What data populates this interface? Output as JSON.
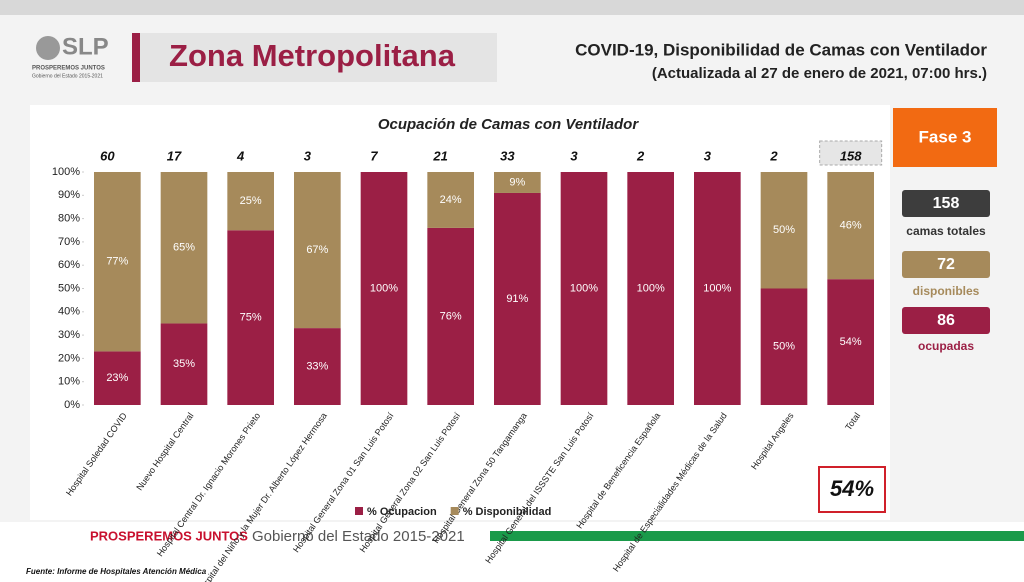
{
  "logo": {
    "mark": "SLP",
    "line1": "PROSPEREMOS JUNTOS",
    "line2": "Gobierno del Estado 2015-2021"
  },
  "header": {
    "zone": "Zona Metropolitana",
    "title": "COVID-19, Disponibilidad de Camas con Ventilador",
    "subtitle": "(Actualizada al 27 de enero de 2021, 07:00 hrs.)"
  },
  "side_panel": {
    "phase": "Fase 3",
    "total": 158,
    "total_label": "camas totales",
    "available": 72,
    "available_label": "disponibles",
    "occupied": 86,
    "occupied_label": "ocupadas"
  },
  "chart_data": {
    "type": "stacked_bar",
    "title": "Ocupación de Camas con Ventilador",
    "categories": [
      "Hospital Soledad COVID",
      "Nuevo Hospital Central",
      "Hospital Central Dr. Ignacio Morones Prieto",
      "Hospital del Niño y la Mujer Dr. Alberto López Hermosa",
      "Hospital General Zona 01 San Luis Potosí",
      "Hospital General Zona 02 San Luis Potosí",
      "Hospital General Zona 50 Tangamanga",
      "Hospital General del ISSSTE San Luis Potosí",
      "Hospital de Beneficencia Española",
      "Hospital de Especialidades Médicas de la Salud",
      "Hospital Angeles",
      "Total"
    ],
    "bed_counts": [
      60,
      17,
      4,
      3,
      7,
      21,
      33,
      3,
      2,
      3,
      2,
      158
    ],
    "series": [
      {
        "name": "% Ocupacion",
        "color": "#9b1f45",
        "values": [
          23,
          35,
          75,
          33,
          100,
          76,
          91,
          100,
          100,
          100,
          50,
          54
        ],
        "value_labels": [
          "23%",
          "35%",
          "75%",
          "33%",
          "100%",
          "76%",
          "91%",
          "100%",
          "100%",
          "100%",
          "50%",
          "54%"
        ]
      },
      {
        "name": "% Disponibilidad",
        "color": "#a68a5b",
        "values": [
          77,
          65,
          25,
          67,
          0,
          24,
          9,
          0,
          0,
          0,
          50,
          46
        ],
        "value_labels": [
          "77%",
          "65%",
          "25%",
          "67%",
          null,
          "24%",
          "9%",
          null,
          null,
          null,
          "50%",
          "46%"
        ]
      }
    ],
    "ylim": [
      0,
      100
    ],
    "yticks": [
      {
        "value": 0,
        "label": "0%"
      },
      {
        "value": 10,
        "label": "10%"
      },
      {
        "value": 20,
        "label": "20%"
      },
      {
        "value": 30,
        "label": "30%"
      },
      {
        "value": 40,
        "label": "40%"
      },
      {
        "value": 50,
        "label": "50%"
      },
      {
        "value": 60,
        "label": "60%"
      },
      {
        "value": 70,
        "label": "70%"
      },
      {
        "value": 80,
        "label": "80%"
      },
      {
        "value": 90,
        "label": "90%"
      },
      {
        "value": 100,
        "label": "100%"
      }
    ],
    "grid": false,
    "legend": "bottom",
    "total_percent": "54%"
  },
  "footer": {
    "brand": "PROSPEREMOS JUNTOS",
    "government": "Gobierno del Estado 2015-2021",
    "source": "Fuente: Informe de Hospitales Atención Médica"
  }
}
